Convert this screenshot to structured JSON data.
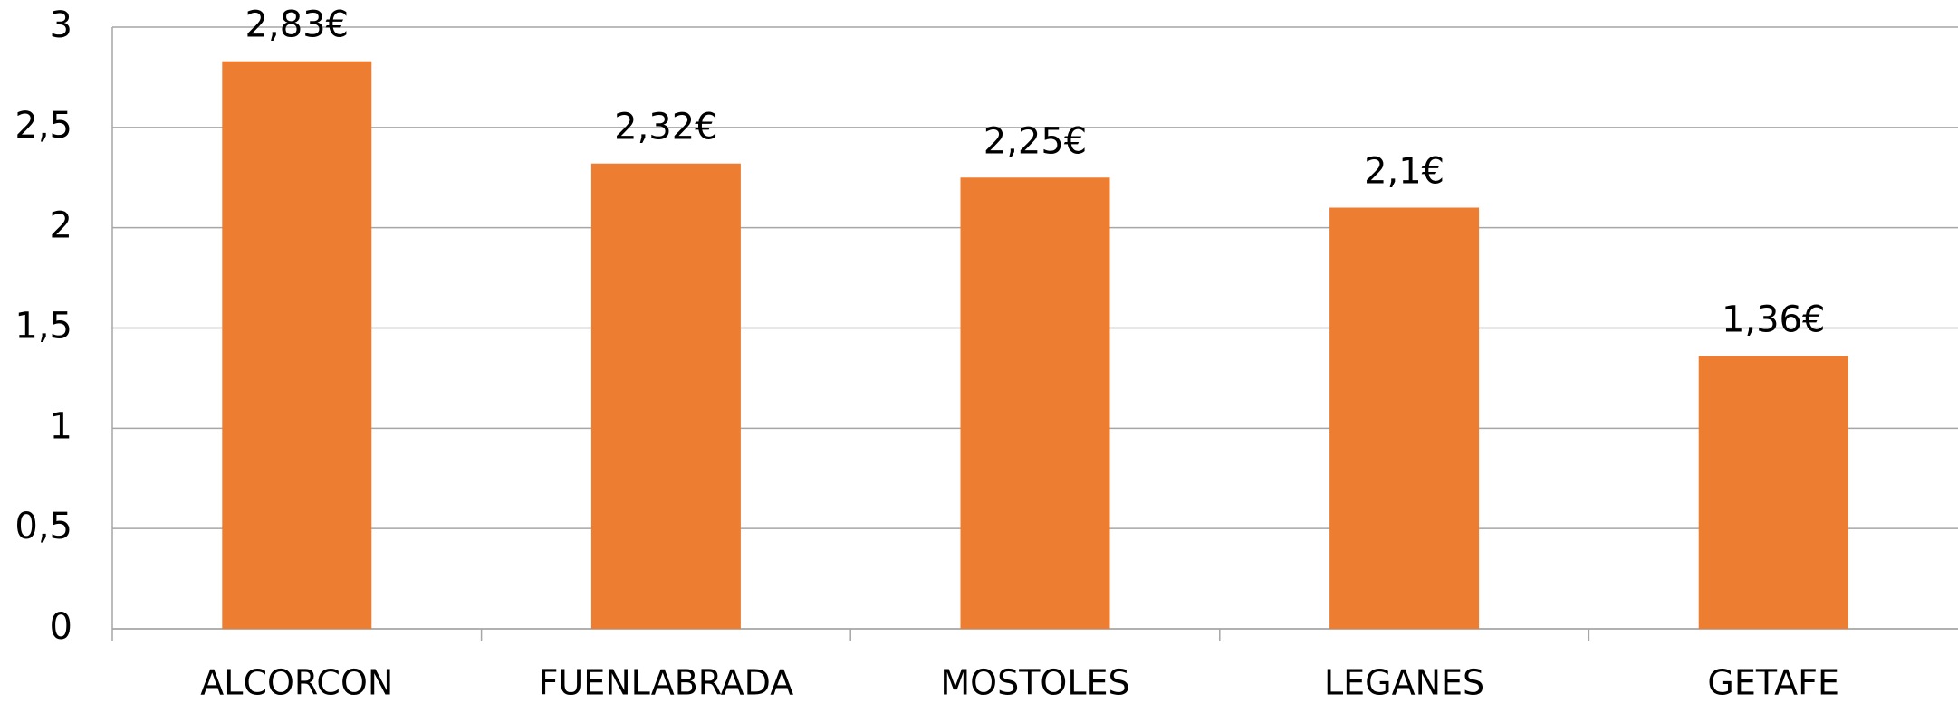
{
  "chart_data": {
    "type": "bar",
    "categories": [
      "ALCORCON",
      "FUENLABRADA",
      "MOSTOLES",
      "LEGANES",
      "GETAFE"
    ],
    "values": [
      2.83,
      2.32,
      2.25,
      2.1,
      1.36
    ],
    "value_labels": [
      "2,83€",
      "2,32€",
      "2,25€",
      "2,1€",
      "1,36€"
    ],
    "color": "#ed7d31",
    "ylim": [
      0,
      3
    ],
    "yticks": [
      0,
      {
        "value": 0.5,
        "label": "0,5"
      },
      1,
      {
        "value": 1.5,
        "label": "1,5"
      },
      2,
      {
        "value": 2.5,
        "label": "2,5"
      },
      3
    ],
    "grid": true
  }
}
